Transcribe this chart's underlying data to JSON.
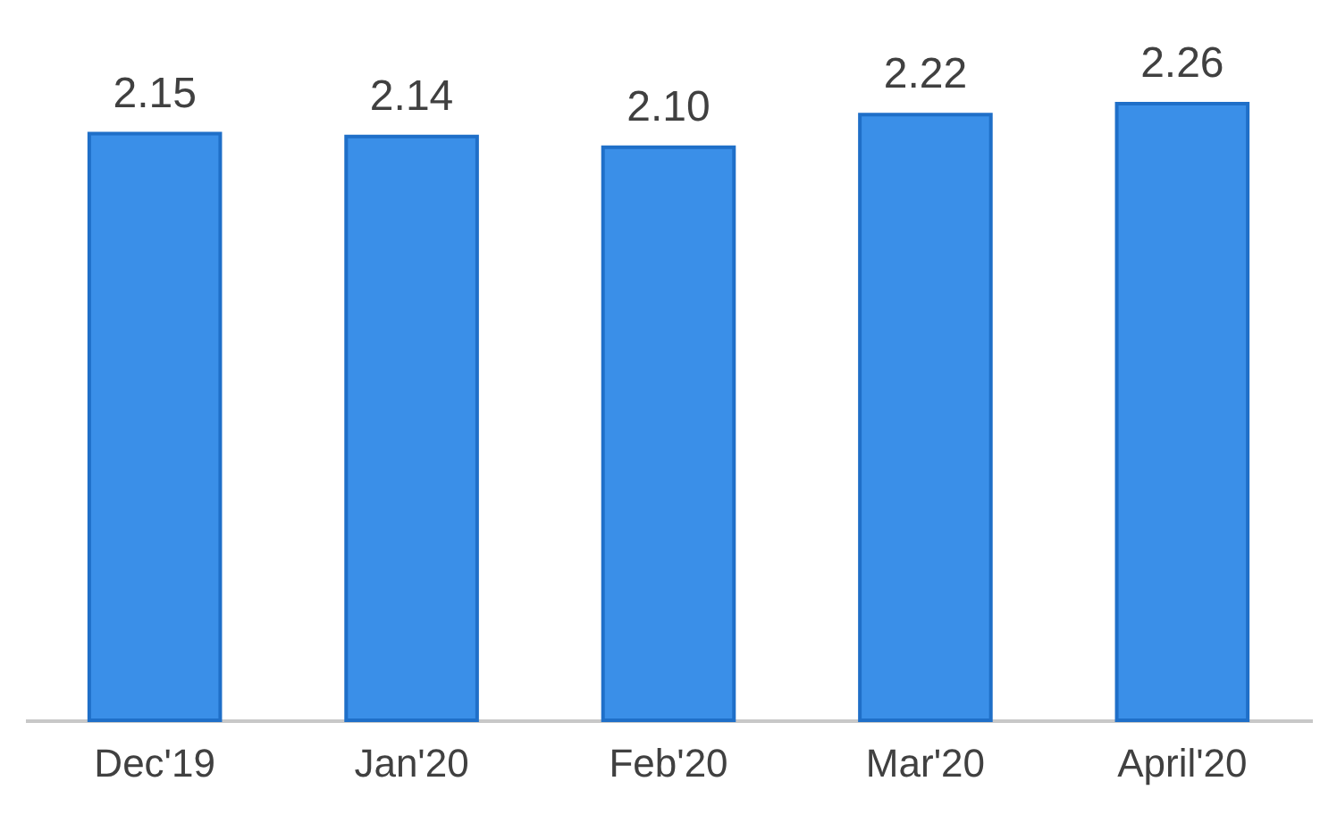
{
  "chart_data": {
    "type": "bar",
    "categories": [
      "Dec'19",
      "Jan'20",
      "Feb'20",
      "Mar'20",
      "April'20"
    ],
    "values": [
      2.15,
      2.14,
      2.1,
      2.22,
      2.26
    ],
    "value_labels": [
      "2.15",
      "2.14",
      "2.10",
      "2.22",
      "2.26"
    ],
    "color": "#3a8fe8"
  }
}
